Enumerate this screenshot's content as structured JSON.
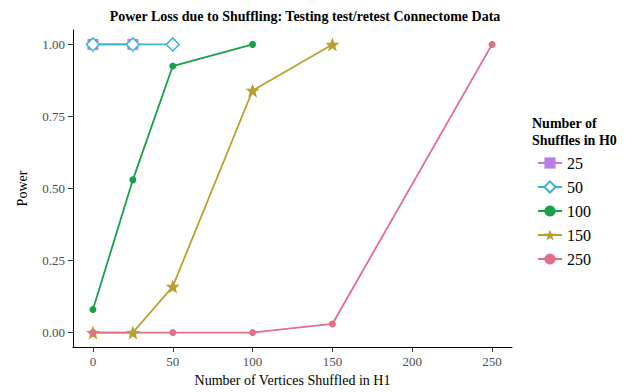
{
  "chart_data": {
    "type": "line",
    "title": "Power Loss due to Shuffling: Testing test/retest Connectome Data",
    "x_label": "Number of Vertices Shuffled in H1",
    "y_label": "Power",
    "legend_title": "Number of\nShuffles in H0",
    "xlim": [
      -12.5,
      262.5
    ],
    "xticks": [
      0,
      50,
      100,
      150,
      200,
      250
    ],
    "ylim": [
      -0.05,
      1.05
    ],
    "yticks": [
      {
        "value": 0,
        "label": "0.00"
      },
      {
        "value": 0.25,
        "label": "0.25"
      },
      {
        "value": 0.5,
        "label": "0.50"
      },
      {
        "value": 0.75,
        "label": "0.75"
      },
      {
        "value": 1,
        "label": "1.00"
      }
    ],
    "grid": false,
    "legend": "right",
    "series": [
      {
        "name": "25",
        "color": "#b77fe3",
        "marker": "square",
        "x": [
          0,
          25
        ],
        "values": [
          1,
          1
        ]
      },
      {
        "name": "50",
        "color": "#36b3d6",
        "marker": "open_diamond",
        "x": [
          0,
          25,
          50
        ],
        "values": [
          1,
          1,
          1
        ]
      },
      {
        "name": "100",
        "color": "#1a9f4a",
        "marker": "circle",
        "x": [
          0,
          25,
          50,
          100
        ],
        "values": [
          0.08,
          0.53,
          0.925,
          1
        ]
      },
      {
        "name": "150",
        "color": "#b8a02e",
        "marker": "star",
        "x": [
          0,
          25,
          50,
          100,
          150
        ],
        "values": [
          0,
          0,
          0.16,
          0.84,
          1
        ]
      },
      {
        "name": "250",
        "color": "#e06f88",
        "marker": "circle",
        "x": [
          0,
          50,
          100,
          150,
          250
        ],
        "values": [
          0,
          0,
          0,
          0.03,
          1
        ]
      }
    ]
  }
}
